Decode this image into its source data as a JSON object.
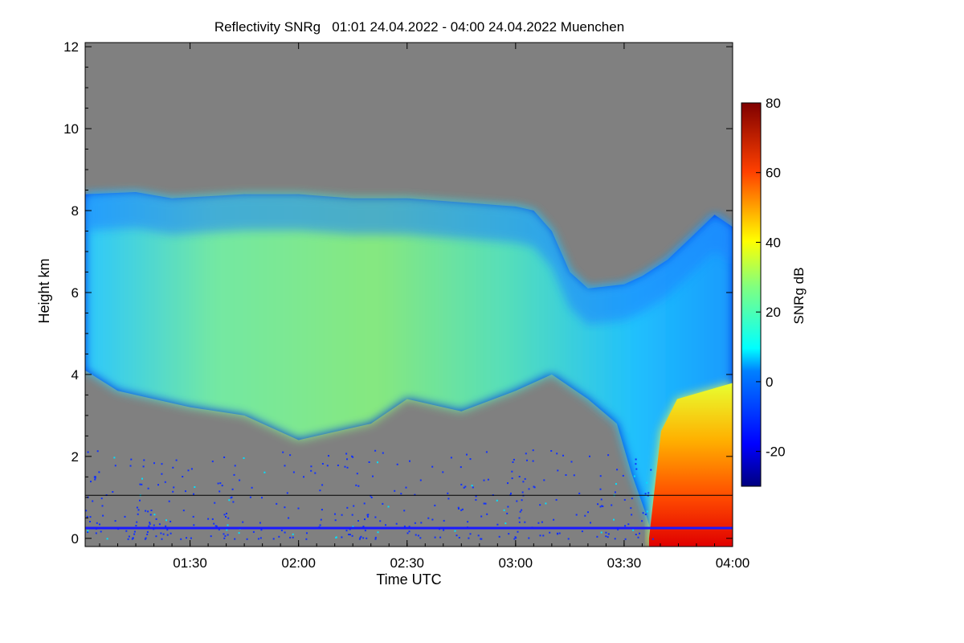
{
  "chart_data": {
    "type": "heatmap",
    "title": "Reflectivity SNRg   01:01 24.04.2022 - 04:00 24.04.2022 Muenchen",
    "xlabel": "Time UTC",
    "ylabel": "Height km",
    "x_range": [
      "01:01",
      "04:00"
    ],
    "x_ticks": [
      "01:30",
      "02:00",
      "02:30",
      "03:00",
      "03:30",
      "04:00"
    ],
    "y_range": [
      -0.2,
      12.1
    ],
    "y_ticks": [
      0,
      2,
      4,
      6,
      8,
      10,
      12
    ],
    "colorbar": {
      "label": "SNRg dB",
      "range": [
        -30,
        80
      ],
      "ticks": [
        -20,
        0,
        20,
        40,
        60,
        80
      ],
      "colormap": "jet"
    },
    "background_color": "#808080",
    "echo_bands": {
      "upper_cloud": {
        "top_km": [
          [
            "01:01",
            8.4
          ],
          [
            "01:15",
            8.45
          ],
          [
            "01:25",
            8.3
          ],
          [
            "01:45",
            8.4
          ],
          [
            "02:00",
            8.4
          ],
          [
            "02:15",
            8.3
          ],
          [
            "02:30",
            8.3
          ],
          [
            "02:45",
            8.2
          ],
          [
            "03:00",
            8.1
          ],
          [
            "03:05",
            8.0
          ],
          [
            "03:10",
            7.5
          ],
          [
            "03:15",
            6.5
          ],
          [
            "03:20",
            6.1
          ],
          [
            "03:30",
            6.2
          ],
          [
            "03:35",
            6.4
          ],
          [
            "03:42",
            6.8
          ],
          [
            "03:48",
            7.3
          ],
          [
            "03:55",
            7.9
          ],
          [
            "04:00",
            7.6
          ]
        ],
        "base_km": [
          [
            "01:01",
            4.1
          ],
          [
            "01:10",
            3.6
          ],
          [
            "01:20",
            3.4
          ],
          [
            "01:30",
            3.2
          ],
          [
            "01:45",
            3.0
          ],
          [
            "02:00",
            2.4
          ],
          [
            "02:10",
            2.6
          ],
          [
            "02:20",
            2.8
          ],
          [
            "02:30",
            3.4
          ],
          [
            "02:45",
            3.1
          ],
          [
            "03:00",
            3.6
          ],
          [
            "03:10",
            4.0
          ],
          [
            "03:20",
            3.4
          ],
          [
            "03:28",
            2.8
          ],
          [
            "03:32",
            1.6
          ],
          [
            "03:36",
            0.6
          ],
          [
            "03:38",
            0.0
          ]
        ]
      },
      "precip_core": {
        "start": "03:38",
        "end": "04:00",
        "top_km": 3.4,
        "peak_db": 60
      }
    },
    "lines": [
      {
        "name": "",
        "height_km": 1.05,
        "color": "#000000"
      },
      {
        "name": "",
        "height_km": 0.25,
        "color": "#1a1aff"
      }
    ]
  }
}
